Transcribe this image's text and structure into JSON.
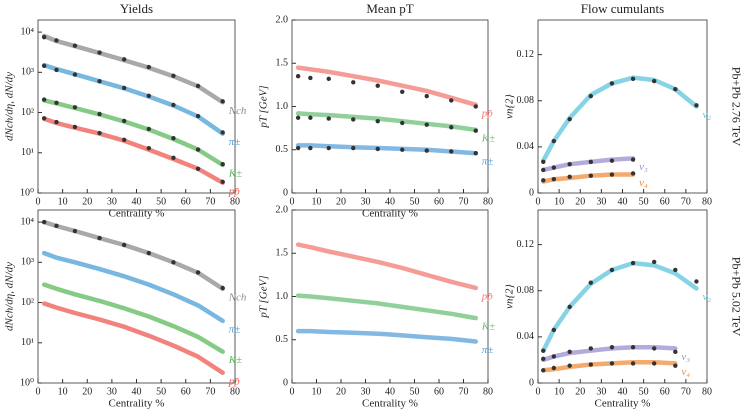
{
  "chart_data": [
    {
      "type": "line",
      "title": "Yields",
      "ylabel": "dNch/dη, dN/dy",
      "xlabel": "Centrality %",
      "log_y": true,
      "x": [
        2.5,
        7.5,
        15,
        25,
        35,
        45,
        55,
        65,
        75
      ],
      "xlim": [
        0,
        80
      ],
      "xticks": [
        0,
        10,
        20,
        30,
        40,
        50,
        60,
        70,
        80
      ],
      "ylim": [
        1,
        20000
      ],
      "yticks": [
        {
          "value": 1,
          "label": "10⁰"
        },
        {
          "value": 10,
          "label": "10¹"
        },
        {
          "value": 100,
          "label": "10²"
        },
        {
          "value": 1000,
          "label": "10³"
        },
        {
          "value": 10000,
          "label": "10⁴"
        }
      ],
      "series": [
        {
          "name": "Nch",
          "color": "#8c8c8c",
          "values": [
            8000,
            6000,
            4500,
            3000,
            2000,
            1300,
            800,
            450,
            180
          ]
        },
        {
          "name": "π±",
          "color": "#4a9fd5",
          "values": [
            1500,
            1200,
            900,
            600,
            400,
            250,
            150,
            80,
            30
          ]
        },
        {
          "name": "K±",
          "color": "#5cb85c",
          "values": [
            200,
            170,
            130,
            90,
            60,
            38,
            22,
            12,
            5
          ]
        },
        {
          "name": "pp̄",
          "color": "#ee5a50",
          "values": [
            70,
            55,
            42,
            30,
            20,
            12,
            7,
            4,
            1.8
          ]
        },
        {
          "marker": true,
          "color": "#333333",
          "values": [
            7500,
            6200,
            4600,
            3100,
            2100,
            1350,
            820,
            460,
            190
          ]
        },
        {
          "marker": true,
          "color": "#333333",
          "values": [
            1450,
            1150,
            880,
            600,
            410,
            260,
            155,
            82,
            32
          ]
        },
        {
          "marker": true,
          "color": "#333333",
          "values": [
            210,
            175,
            135,
            92,
            62,
            39,
            23,
            12,
            5.2
          ]
        },
        {
          "marker": true,
          "color": "#333333",
          "values": [
            72,
            58,
            44,
            31,
            21,
            13,
            7.5,
            4,
            1.9
          ]
        }
      ]
    },
    {
      "type": "line",
      "title": "Mean pT",
      "ylabel": "pT [GeV]",
      "xlabel": "Centrality %",
      "x": [
        2.5,
        7.5,
        15,
        25,
        35,
        45,
        55,
        65,
        75
      ],
      "xlim": [
        0,
        80
      ],
      "xticks": [
        0,
        10,
        20,
        30,
        40,
        50,
        60,
        70,
        80
      ],
      "ylim": [
        0,
        2
      ],
      "yticks": [
        0,
        0.5,
        {
          "value": 1,
          "label": "1.0"
        },
        1.5,
        {
          "value": 2,
          "label": "2.0"
        }
      ],
      "series": [
        {
          "name": "pp̄",
          "color": "#f07b72",
          "values": [
            1.45,
            1.43,
            1.4,
            1.35,
            1.3,
            1.24,
            1.18,
            1.1,
            1.02
          ]
        },
        {
          "name": "K±",
          "color": "#6cc07a",
          "values": [
            0.92,
            0.91,
            0.9,
            0.88,
            0.86,
            0.83,
            0.8,
            0.77,
            0.73
          ]
        },
        {
          "name": "π±",
          "color": "#5aa0d8",
          "values": [
            0.55,
            0.55,
            0.54,
            0.53,
            0.52,
            0.51,
            0.5,
            0.48,
            0.46
          ]
        },
        {
          "marker": true,
          "color": "#333333",
          "values": [
            1.35,
            1.33,
            1.32,
            1.28,
            1.24,
            1.17,
            1.12,
            1.07,
            1.0
          ]
        },
        {
          "marker": true,
          "color": "#333333",
          "values": [
            0.87,
            0.87,
            0.86,
            0.85,
            0.83,
            0.81,
            0.79,
            0.76,
            0.72
          ]
        },
        {
          "marker": true,
          "color": "#333333",
          "values": [
            0.52,
            0.52,
            0.52,
            0.52,
            0.51,
            0.5,
            0.49,
            0.48,
            0.46
          ]
        }
      ]
    },
    {
      "type": "line",
      "title": "Flow cumulants",
      "ylabel": "vn{2}",
      "annotation": "Pb+Pb 2.76 TeV",
      "x": [
        2.5,
        7.5,
        15,
        25,
        35,
        45,
        55,
        65,
        75
      ],
      "xlim": [
        0,
        80
      ],
      "xticks": [
        0,
        10,
        20,
        30,
        40,
        50,
        60,
        70,
        80
      ],
      "ylim": [
        0,
        0.15
      ],
      "yticks": [
        0,
        0.04,
        0.08,
        0.12
      ],
      "series": [
        {
          "name": "v₂",
          "color": "#5ec4dc",
          "values": [
            0.028,
            0.045,
            0.065,
            0.085,
            0.095,
            0.1,
            0.098,
            0.09,
            0.075
          ]
        },
        {
          "name": "v₃",
          "color": "#9b8fd0",
          "values": [
            0.02,
            0.022,
            0.025,
            0.027,
            0.029,
            0.03,
            null,
            null,
            null
          ]
        },
        {
          "name": "v₄",
          "color": "#f08c3c",
          "values": [
            0.01,
            0.012,
            0.013,
            0.015,
            0.016,
            0.016,
            null,
            null,
            null
          ]
        },
        {
          "marker": true,
          "color": "#333333",
          "values": [
            0.027,
            0.045,
            0.064,
            0.084,
            0.095,
            0.099,
            0.097,
            0.09,
            0.076
          ]
        },
        {
          "marker": true,
          "color": "#333333",
          "values": [
            0.02,
            0.022,
            0.025,
            0.027,
            0.028,
            0.029,
            null,
            null,
            null
          ]
        },
        {
          "marker": true,
          "color": "#333333",
          "values": [
            0.011,
            0.012,
            0.014,
            0.015,
            0.016,
            0.017,
            null,
            null,
            null
          ]
        }
      ]
    },
    {
      "type": "line",
      "ylabel": "dNch/dη, dN/dy",
      "xlabel": "Centrality %",
      "log_y": true,
      "x": [
        2.5,
        7.5,
        15,
        25,
        35,
        45,
        55,
        65,
        75
      ],
      "xlim": [
        0,
        80
      ],
      "xticks": [
        0,
        10,
        20,
        30,
        40,
        50,
        60,
        70,
        80
      ],
      "ylim": [
        1,
        20000
      ],
      "yticks": [
        {
          "value": 1,
          "label": "10⁰"
        },
        {
          "value": 10,
          "label": "10¹"
        },
        {
          "value": 100,
          "label": "10²"
        },
        {
          "value": 1000,
          "label": "10³"
        },
        {
          "value": 10000,
          "label": "10⁴"
        }
      ],
      "series": [
        {
          "name": "Nch",
          "color": "#8c8c8c",
          "values": [
            10000,
            8000,
            6000,
            4000,
            2700,
            1700,
            1000,
            550,
            220
          ]
        },
        {
          "name": "π±",
          "color": "#4a9fd5",
          "values": [
            1700,
            1300,
            1000,
            680,
            450,
            280,
            160,
            85,
            35
          ]
        },
        {
          "name": "K±",
          "color": "#5cb85c",
          "values": [
            280,
            220,
            160,
            110,
            72,
            45,
            26,
            14,
            6
          ]
        },
        {
          "name": "pp̄",
          "color": "#ee5a50",
          "values": [
            95,
            75,
            55,
            38,
            25,
            15,
            8.5,
            4.5,
            1.8
          ]
        },
        {
          "marker": true,
          "color": "#333333",
          "values": [
            10000,
            8100,
            6000,
            4000,
            2700,
            1700,
            1000,
            560,
            230
          ]
        }
      ]
    },
    {
      "type": "line",
      "ylabel": "pT [GeV]",
      "xlabel": "Centrality %",
      "x": [
        2.5,
        7.5,
        15,
        25,
        35,
        45,
        55,
        65,
        75
      ],
      "xlim": [
        0,
        80
      ],
      "xticks": [
        0,
        10,
        20,
        30,
        40,
        50,
        60,
        70,
        80
      ],
      "ylim": [
        0,
        2
      ],
      "yticks": [
        0,
        0.5,
        {
          "value": 1,
          "label": "1.0"
        },
        1.5,
        {
          "value": 2,
          "label": "2.0"
        }
      ],
      "series": [
        {
          "name": "pp̄",
          "color": "#f07b72",
          "values": [
            1.6,
            1.57,
            1.52,
            1.46,
            1.4,
            1.33,
            1.25,
            1.17,
            1.1
          ]
        },
        {
          "name": "K±",
          "color": "#6cc07a",
          "values": [
            1.01,
            1.0,
            0.98,
            0.95,
            0.92,
            0.88,
            0.84,
            0.8,
            0.75
          ]
        },
        {
          "name": "π±",
          "color": "#5aa0d8",
          "values": [
            0.6,
            0.6,
            0.59,
            0.58,
            0.57,
            0.55,
            0.53,
            0.51,
            0.48
          ]
        }
      ]
    },
    {
      "type": "line",
      "ylabel": "vn{2}",
      "xlabel": "Centrality %",
      "annotation": "Pb+Pb 5.02 TeV",
      "x": [
        2.5,
        7.5,
        15,
        25,
        35,
        45,
        55,
        65,
        75
      ],
      "xlim": [
        0,
        80
      ],
      "xticks": [
        0,
        10,
        20,
        30,
        40,
        50,
        60,
        70,
        80
      ],
      "ylim": [
        0,
        0.15
      ],
      "yticks": [
        0,
        0.04,
        0.08,
        0.12
      ],
      "series": [
        {
          "name": "v₂",
          "color": "#5ec4dc",
          "values": [
            0.028,
            0.046,
            0.066,
            0.086,
            0.098,
            0.104,
            0.102,
            0.095,
            0.082
          ]
        },
        {
          "name": "v₃",
          "color": "#9b8fd0",
          "values": [
            0.02,
            0.023,
            0.026,
            0.028,
            0.03,
            0.031,
            0.031,
            0.03,
            null
          ]
        },
        {
          "name": "v₄",
          "color": "#f08c3c",
          "values": [
            0.011,
            0.012,
            0.014,
            0.016,
            0.017,
            0.018,
            0.018,
            0.017,
            null
          ]
        },
        {
          "marker": true,
          "color": "#333333",
          "values": [
            0.028,
            0.046,
            0.066,
            0.087,
            0.098,
            0.104,
            0.105,
            0.098,
            0.088
          ]
        },
        {
          "marker": true,
          "color": "#333333",
          "values": [
            0.021,
            0.023,
            0.027,
            0.03,
            0.031,
            0.031,
            0.03,
            0.027,
            null
          ]
        },
        {
          "marker": true,
          "color": "#333333",
          "values": [
            0.011,
            0.013,
            0.015,
            0.016,
            0.017,
            0.017,
            0.017,
            0.015,
            null
          ]
        }
      ]
    }
  ]
}
